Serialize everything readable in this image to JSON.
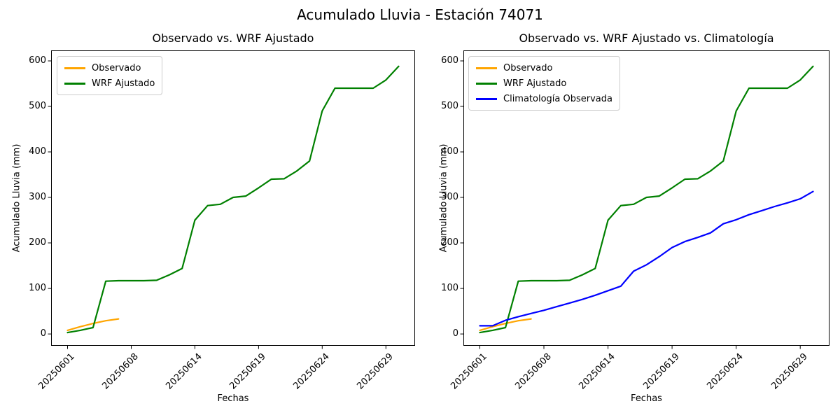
{
  "figure": {
    "title": "Acumulado Lluvia - Estación 74071",
    "background": "#ffffff"
  },
  "colors": {
    "observado": "#FFA500",
    "wrf_ajustado": "#008000",
    "climatologia": "#0000FF",
    "axis": "#000000",
    "legend_border": "#cccccc"
  },
  "chart_data": [
    {
      "type": "line",
      "title": "Observado vs. WRF Ajustado",
      "xlabel": "Fechas",
      "ylabel": "Acumulado Lluvia (mm)",
      "legend_position": "upper left",
      "grid": false,
      "x_index_count": 27,
      "x_tick_indices": [
        0,
        5,
        10,
        15,
        20,
        25
      ],
      "x_tick_labels": [
        "20250601",
        "20250608",
        "20250614",
        "20250619",
        "20250624",
        "20250629"
      ],
      "x_tick_rotation": 45,
      "y_ticks": [
        0,
        100,
        200,
        300,
        400,
        500,
        600
      ],
      "ylim": [
        -26,
        623
      ],
      "series": [
        {
          "name": "Observado",
          "color_key": "observado",
          "values": [
            8,
            16,
            23,
            29,
            33
          ]
        },
        {
          "name": "WRF Ajustado",
          "color_key": "wrf_ajustado",
          "values": [
            3,
            8,
            14,
            116,
            117,
            117,
            117,
            118,
            130,
            144,
            250,
            282,
            285,
            300,
            303,
            321,
            340,
            341,
            358,
            380,
            490,
            540,
            540,
            540,
            540,
            558,
            588
          ]
        }
      ]
    },
    {
      "type": "line",
      "title": "Observado vs. WRF Ajustado vs. Climatología",
      "xlabel": "Fechas",
      "ylabel": "Acumulado Lluvia (mm)",
      "legend_position": "upper left",
      "grid": false,
      "x_index_count": 27,
      "x_tick_indices": [
        0,
        5,
        10,
        15,
        20,
        25
      ],
      "x_tick_labels": [
        "20250601",
        "20250608",
        "20250614",
        "20250619",
        "20250624",
        "20250629"
      ],
      "x_tick_rotation": 45,
      "y_ticks": [
        0,
        100,
        200,
        300,
        400,
        500,
        600
      ],
      "ylim": [
        -26,
        623
      ],
      "series": [
        {
          "name": "Observado",
          "color_key": "observado",
          "values": [
            8,
            16,
            23,
            29,
            33
          ]
        },
        {
          "name": "WRF Ajustado",
          "color_key": "wrf_ajustado",
          "values": [
            3,
            8,
            14,
            116,
            117,
            117,
            117,
            118,
            130,
            144,
            250,
            282,
            285,
            300,
            303,
            321,
            340,
            341,
            358,
            380,
            490,
            540,
            540,
            540,
            540,
            558,
            588
          ]
        },
        {
          "name": "Climatología Observada",
          "color_key": "climatologia",
          "values": [
            18,
            18,
            30,
            38,
            45,
            52,
            60,
            68,
            76,
            85,
            95,
            105,
            138,
            152,
            170,
            190,
            203,
            212,
            222,
            242,
            251,
            262,
            271,
            280,
            288,
            297,
            313
          ]
        }
      ]
    }
  ]
}
